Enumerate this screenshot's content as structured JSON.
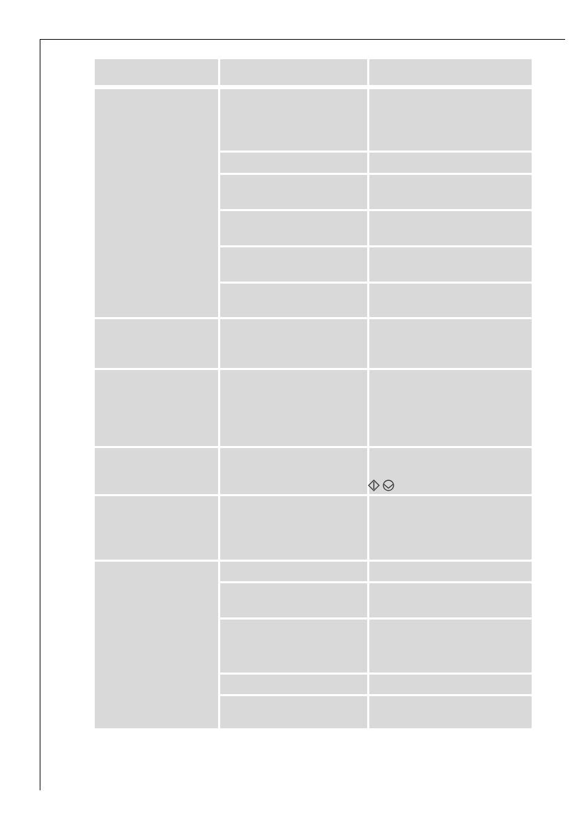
{
  "colors": {
    "cell_fill": "#d9d9d9",
    "frame": "#000000",
    "icon_stroke": "#333333"
  },
  "table": {
    "icons": [
      "start-diamond-icon",
      "circle-v-icon"
    ]
  }
}
